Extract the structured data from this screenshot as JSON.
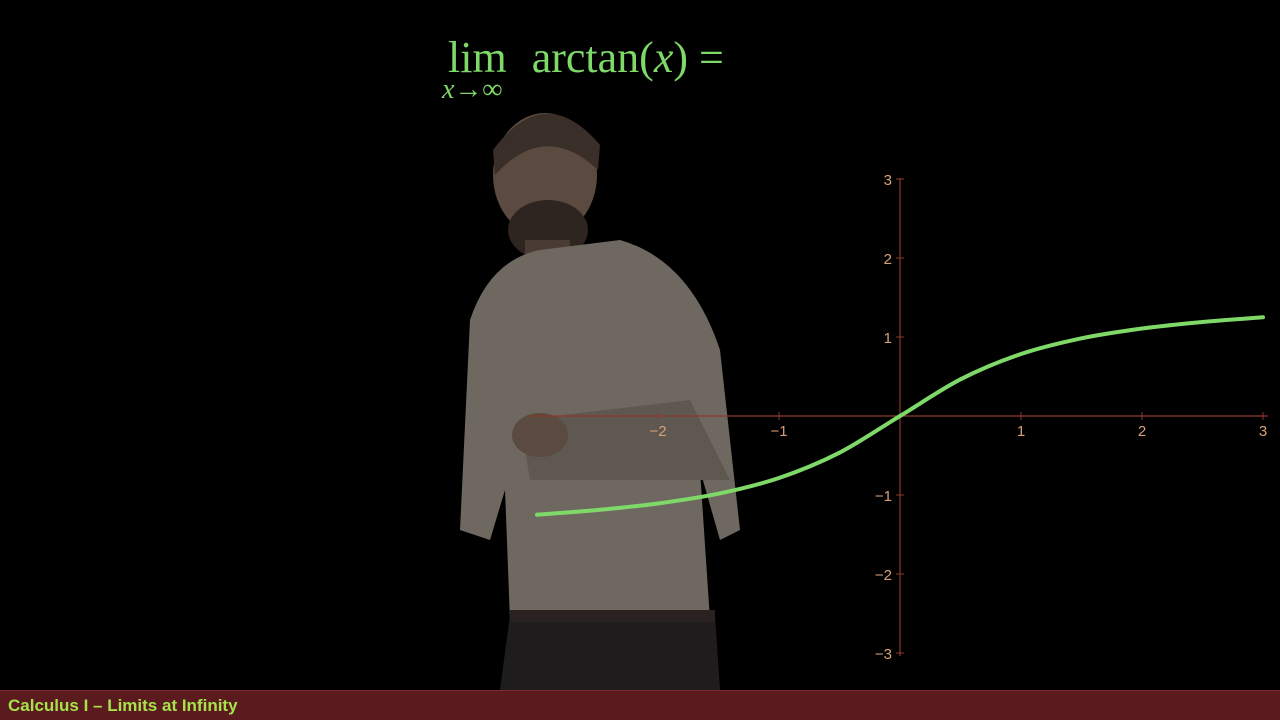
{
  "formula": {
    "lim": "lim",
    "subscript": "x→∞",
    "function": "arctan(",
    "variable": "x",
    "close": ")",
    "equals": "="
  },
  "chart_data": {
    "type": "line",
    "title": "",
    "xlabel": "",
    "ylabel": "",
    "xlim": [
      -3,
      3
    ],
    "ylim": [
      -3,
      3
    ],
    "x_ticks": [
      "−2",
      "−1",
      "1",
      "2",
      "3"
    ],
    "y_ticks": [
      "3",
      "2",
      "1",
      "−1",
      "−2",
      "−3"
    ],
    "series": [
      {
        "name": "arctan(x)",
        "x": [
          -3,
          -2.5,
          -2,
          -1.5,
          -1,
          -0.5,
          0,
          0.5,
          1,
          1.5,
          2,
          2.5,
          3
        ],
        "y": [
          -1.249,
          -1.19,
          -1.107,
          -0.983,
          -0.785,
          -0.464,
          0,
          0.464,
          0.785,
          0.983,
          1.107,
          1.19,
          1.249
        ]
      }
    ],
    "colors": {
      "curve": "#7fd968",
      "axis": "#8a3a2a",
      "tick_label": "#d8a07a"
    }
  },
  "footer": {
    "title": "Calculus I – Limits at Infinity"
  }
}
